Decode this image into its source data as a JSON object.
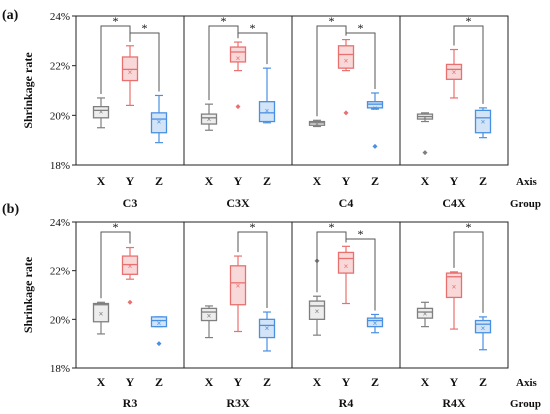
{
  "chart_data": [
    {
      "type": "box",
      "panel": "(a)",
      "ylabel": "Shrinkage rate",
      "ylim": [
        18,
        24
      ],
      "y_ticks": [
        "18%",
        "20%",
        "22%",
        "24%"
      ],
      "axis_row_tail": "Axis",
      "group_row_tail": "Group",
      "axes": [
        "X",
        "Y",
        "Z"
      ],
      "colors": {
        "X": "#7f7f7f",
        "Y": "#e8706f",
        "Z": "#4a90e2"
      },
      "groups": [
        {
          "name": "C3",
          "boxes": [
            {
              "axis": "X",
              "min": 19.5,
              "q1": 19.9,
              "median": 20.2,
              "q3": 20.35,
              "max": 20.7,
              "mean": 20.15,
              "outliers": []
            },
            {
              "axis": "Y",
              "min": 20.4,
              "q1": 21.4,
              "median": 21.85,
              "q3": 22.35,
              "max": 22.8,
              "mean": 21.75,
              "outliers": []
            },
            {
              "axis": "Z",
              "min": 18.9,
              "q1": 19.3,
              "median": 19.85,
              "q3": 20.1,
              "max": 20.8,
              "mean": 19.75,
              "outliers": []
            }
          ],
          "significance": [
            {
              "from": "X",
              "to": "Y"
            },
            {
              "from": "Y",
              "to": "Z"
            }
          ]
        },
        {
          "name": "C3X",
          "boxes": [
            {
              "axis": "X",
              "min": 19.4,
              "q1": 19.65,
              "median": 19.9,
              "q3": 20.05,
              "max": 20.45,
              "mean": 19.85,
              "outliers": []
            },
            {
              "axis": "Y",
              "min": 21.8,
              "q1": 22.15,
              "median": 22.55,
              "q3": 22.75,
              "max": 22.95,
              "mean": 22.3,
              "outliers": [
                20.35
              ]
            },
            {
              "axis": "Z",
              "min": 19.7,
              "q1": 19.75,
              "median": 20.1,
              "q3": 20.55,
              "max": 21.9,
              "mean": 20.2,
              "outliers": []
            }
          ],
          "significance": [
            {
              "from": "X",
              "to": "Y"
            },
            {
              "from": "Y",
              "to": "Z"
            }
          ]
        },
        {
          "name": "C4",
          "boxes": [
            {
              "axis": "X",
              "min": 19.55,
              "q1": 19.6,
              "median": 19.7,
              "q3": 19.75,
              "max": 19.8,
              "mean": 19.68,
              "outliers": []
            },
            {
              "axis": "Y",
              "min": 21.8,
              "q1": 21.9,
              "median": 22.45,
              "q3": 22.8,
              "max": 23.05,
              "mean": 22.2,
              "outliers": [
                20.1
              ]
            },
            {
              "axis": "Z",
              "min": 20.25,
              "q1": 20.3,
              "median": 20.45,
              "q3": 20.55,
              "max": 20.9,
              "mean": 20.3,
              "outliers": [
                18.75
              ]
            }
          ],
          "significance": [
            {
              "from": "X",
              "to": "Y"
            },
            {
              "from": "Y",
              "to": "Z"
            }
          ]
        },
        {
          "name": "C4X",
          "boxes": [
            {
              "axis": "X",
              "min": 19.75,
              "q1": 19.85,
              "median": 19.95,
              "q3": 20.05,
              "max": 20.1,
              "mean": 19.92,
              "outliers": [
                18.5
              ]
            },
            {
              "axis": "Y",
              "min": 20.7,
              "q1": 21.45,
              "median": 21.85,
              "q3": 22.05,
              "max": 22.65,
              "mean": 21.75,
              "outliers": []
            },
            {
              "axis": "Z",
              "min": 19.1,
              "q1": 19.3,
              "median": 19.9,
              "q3": 20.2,
              "max": 20.3,
              "mean": 19.75,
              "outliers": []
            }
          ],
          "significance": [
            {
              "from": "Y",
              "to": "Z"
            }
          ]
        }
      ]
    },
    {
      "type": "box",
      "panel": "(b)",
      "ylabel": "Shrinkage rate",
      "ylim": [
        18,
        24
      ],
      "y_ticks": [
        "18%",
        "20%",
        "22%",
        "24%"
      ],
      "axis_row_tail": "Axis",
      "group_row_tail": "Group",
      "axes": [
        "X",
        "Y",
        "Z"
      ],
      "colors": {
        "X": "#7f7f7f",
        "Y": "#e8706f",
        "Z": "#4a90e2"
      },
      "groups": [
        {
          "name": "R3",
          "boxes": [
            {
              "axis": "X",
              "min": 19.4,
              "q1": 19.9,
              "median": 20.6,
              "q3": 20.65,
              "max": 20.7,
              "mean": 20.25,
              "outliers": []
            },
            {
              "axis": "Y",
              "min": 21.65,
              "q1": 21.85,
              "median": 22.25,
              "q3": 22.6,
              "max": 22.95,
              "mean": 22.2,
              "outliers": [
                20.7
              ]
            },
            {
              "axis": "Z",
              "min": 19.7,
              "q1": 19.7,
              "median": 19.95,
              "q3": 20.1,
              "max": 20.1,
              "mean": 19.85,
              "outliers": [
                19.0
              ]
            }
          ],
          "significance": [
            {
              "from": "X",
              "to": "Y"
            }
          ]
        },
        {
          "name": "R3X",
          "boxes": [
            {
              "axis": "X",
              "min": 19.25,
              "q1": 19.95,
              "median": 20.3,
              "q3": 20.45,
              "max": 20.55,
              "mean": 20.15,
              "outliers": []
            },
            {
              "axis": "Y",
              "min": 19.5,
              "q1": 20.6,
              "median": 21.5,
              "q3": 22.2,
              "max": 22.6,
              "mean": 21.4,
              "outliers": []
            },
            {
              "axis": "Z",
              "min": 18.7,
              "q1": 19.25,
              "median": 19.75,
              "q3": 20.0,
              "max": 20.3,
              "mean": 19.65,
              "outliers": []
            }
          ],
          "significance": [
            {
              "from": "Y",
              "to": "Z"
            }
          ]
        },
        {
          "name": "R4",
          "boxes": [
            {
              "axis": "X",
              "min": 19.35,
              "q1": 20.0,
              "median": 20.55,
              "q3": 20.75,
              "max": 20.95,
              "mean": 20.35,
              "outliers": [
                22.4
              ]
            },
            {
              "axis": "Y",
              "min": 20.65,
              "q1": 21.9,
              "median": 22.5,
              "q3": 22.75,
              "max": 23.0,
              "mean": 22.2,
              "outliers": []
            },
            {
              "axis": "Z",
              "min": 19.45,
              "q1": 19.7,
              "median": 19.95,
              "q3": 20.05,
              "max": 20.2,
              "mean": 19.85,
              "outliers": []
            }
          ],
          "significance": [
            {
              "from": "X",
              "to": "Y"
            },
            {
              "from": "Y",
              "to": "Z"
            }
          ]
        },
        {
          "name": "R4X",
          "boxes": [
            {
              "axis": "X",
              "min": 19.7,
              "q1": 20.05,
              "median": 20.3,
              "q3": 20.45,
              "max": 20.7,
              "mean": 20.25,
              "outliers": []
            },
            {
              "axis": "Y",
              "min": 19.6,
              "q1": 20.9,
              "median": 21.75,
              "q3": 21.9,
              "max": 21.95,
              "mean": 21.35,
              "outliers": []
            },
            {
              "axis": "Z",
              "min": 18.75,
              "q1": 19.45,
              "median": 19.8,
              "q3": 19.95,
              "max": 20.1,
              "mean": 19.65,
              "outliers": []
            }
          ],
          "significance": [
            {
              "from": "Y",
              "to": "Z"
            }
          ]
        }
      ]
    }
  ]
}
